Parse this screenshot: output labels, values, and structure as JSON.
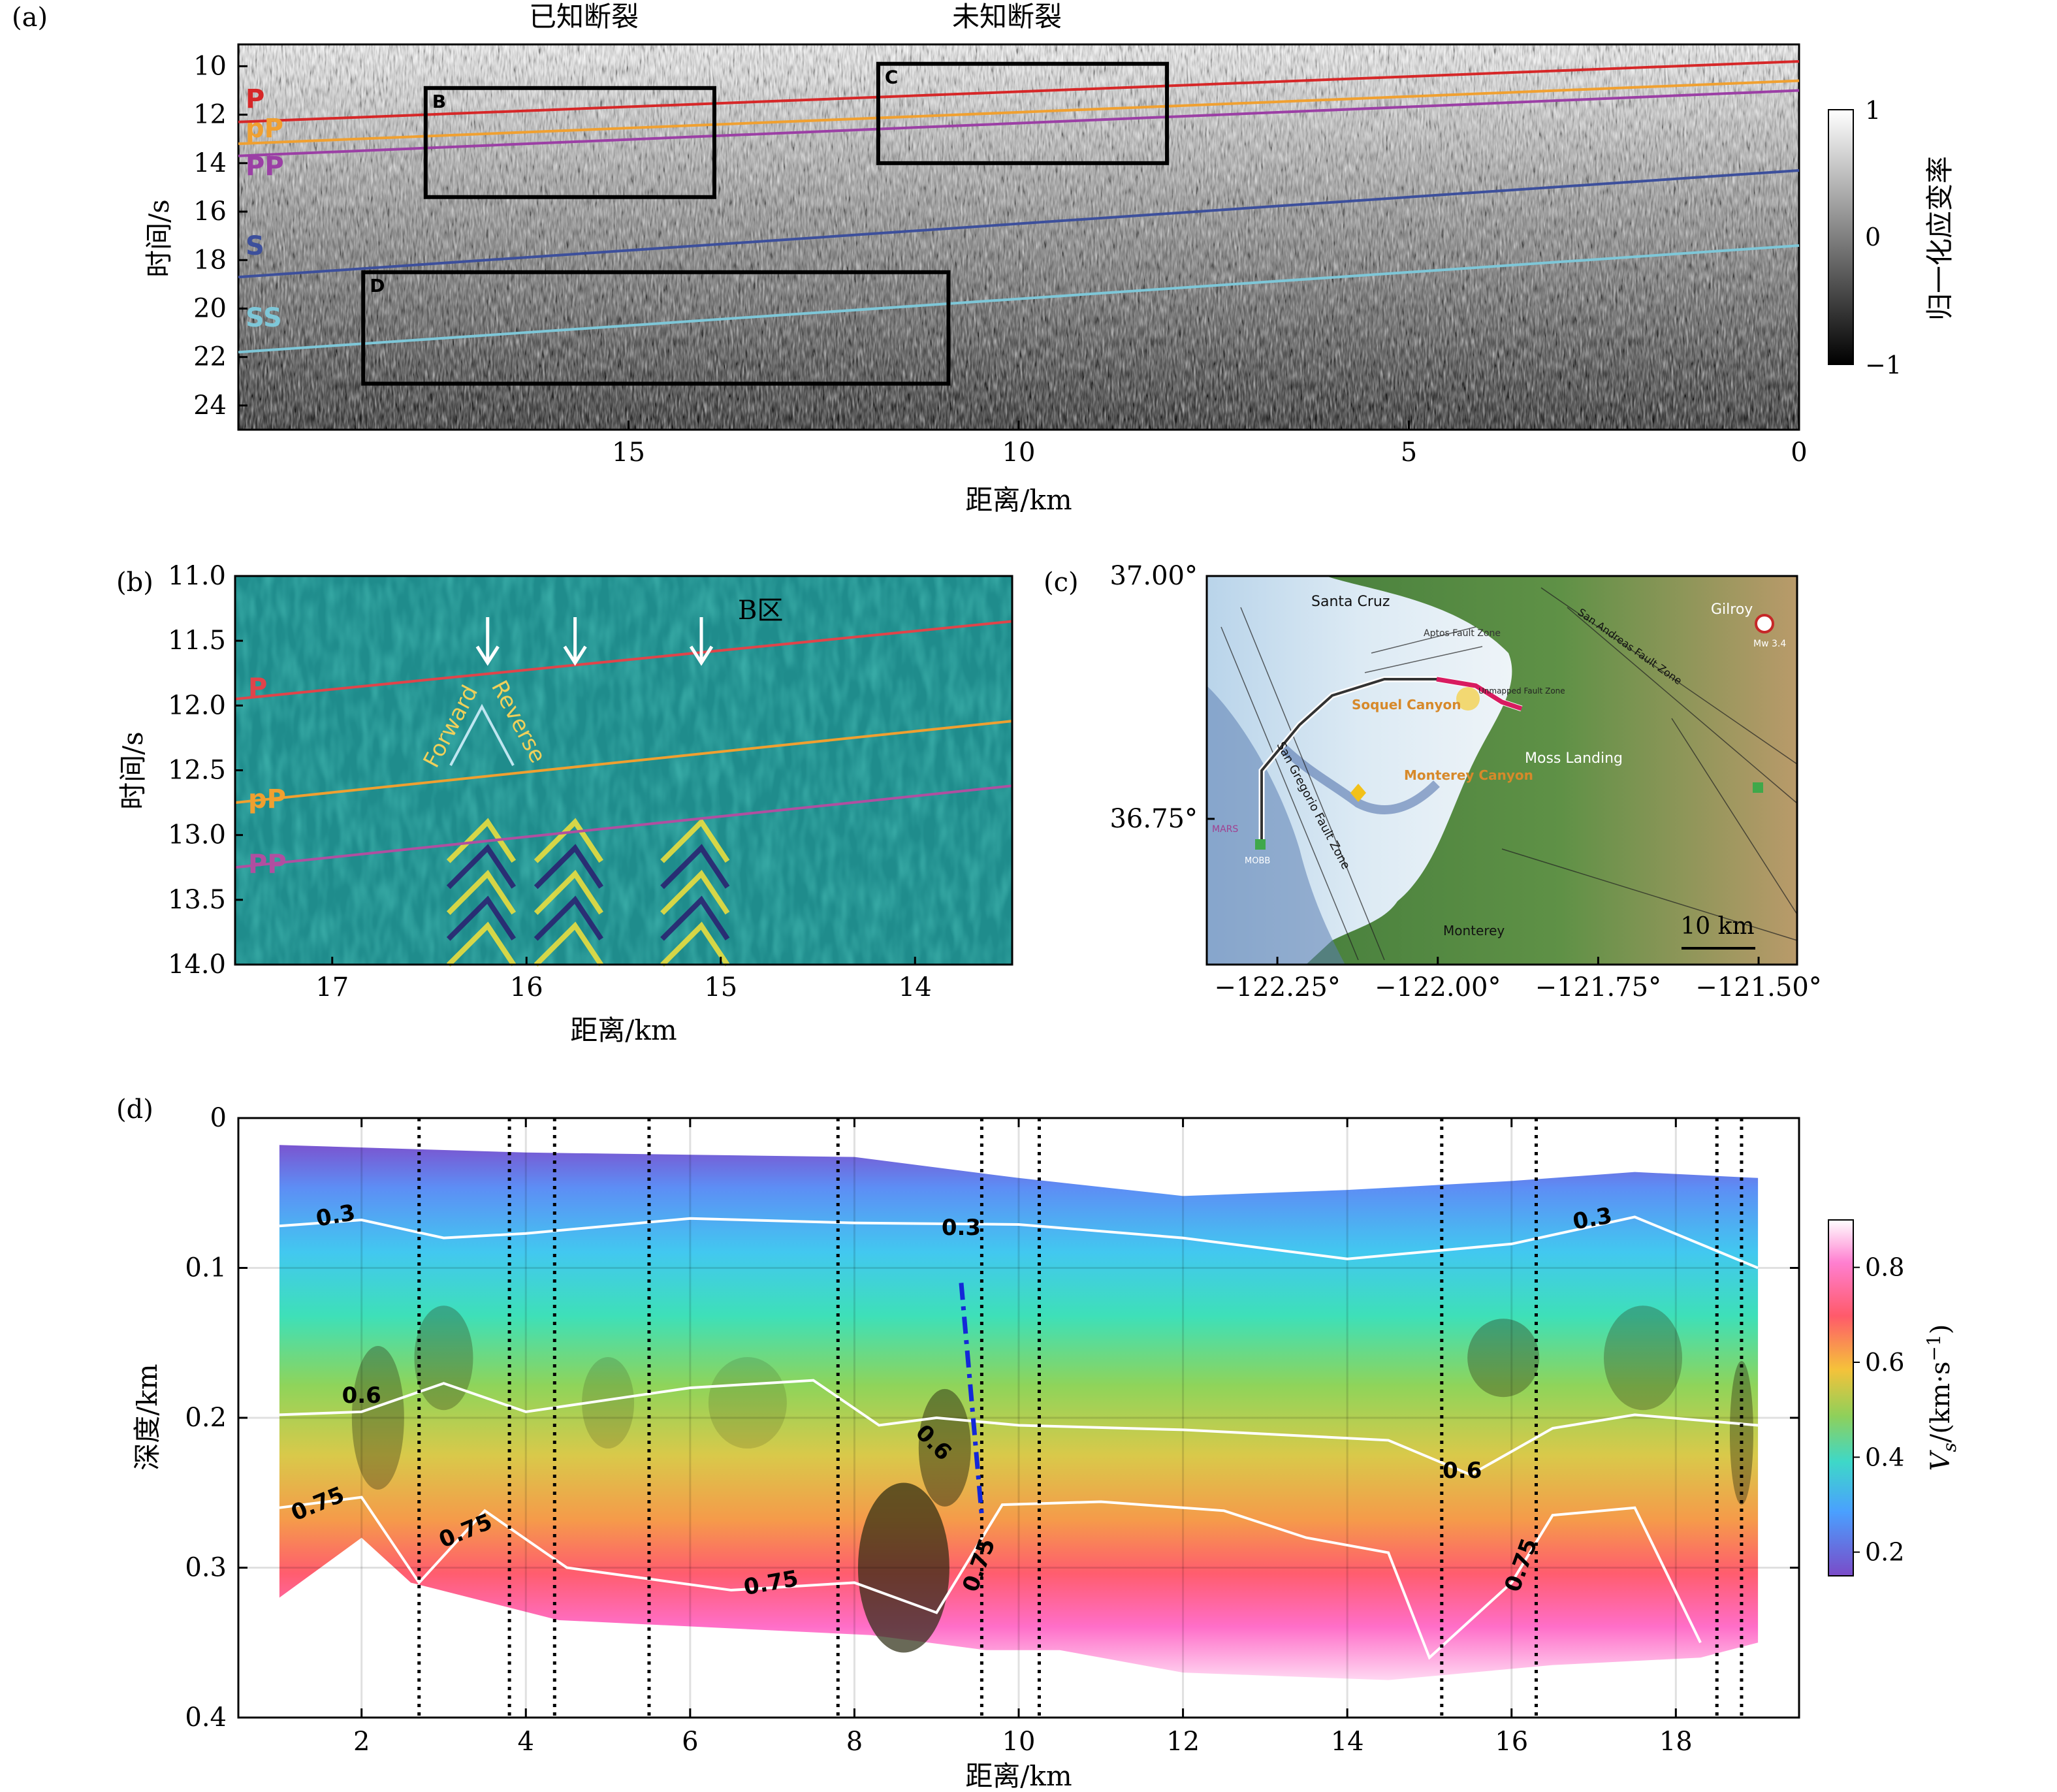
{
  "panels": {
    "a": {
      "label": "(a)",
      "ylabel": "时间/s",
      "xlabel": "距离/km",
      "xticks": [
        "15",
        "10",
        "5",
        "0"
      ],
      "yticks": [
        "10",
        "12",
        "14",
        "16",
        "18",
        "20",
        "22",
        "24"
      ],
      "top_annotations": [
        "已知断裂",
        "未知断裂"
      ],
      "box_labels": [
        "B",
        "C",
        "D"
      ],
      "phase_labels": [
        "P",
        "pP",
        "PP",
        "S",
        "SS"
      ],
      "colorbar": {
        "title": "归一化应变率",
        "ticks": [
          "1",
          "0",
          "−1"
        ]
      }
    },
    "b": {
      "label": "(b)",
      "ylabel": "时间/s",
      "xlabel": "距离/km",
      "xticks": [
        "17",
        "16",
        "15",
        "14"
      ],
      "yticks": [
        "11.0",
        "11.5",
        "12.0",
        "12.5",
        "13.0",
        "13.5",
        "14.0"
      ],
      "region_label": "B区",
      "phase_labels": [
        "P",
        "pP",
        "PP"
      ],
      "forward_label": "Forward",
      "reverse_label": "Reverse"
    },
    "c": {
      "label": "(c)",
      "xticks": [
        "−122.25°",
        "−122.00°",
        "−121.75°",
        "−121.50°"
      ],
      "yticks": [
        "37.00°",
        "36.75°"
      ],
      "scale_bar": "10 km",
      "map_labels": {
        "santa_cruz": "Santa Cruz",
        "gilroy": "Gilroy",
        "soquel": "Soquel Canyon",
        "monterey_canyon": "Monterey Canyon",
        "moss_landing": "Moss Landing",
        "monterey": "Monterey",
        "san_gregorio": "San Gregorio Fault Zone",
        "mars": "MARS",
        "mobb": "MOBB",
        "mw": "Mw 3.4",
        "aptos": "Aptos Fault Zone",
        "unmapped": "Unmapped Fault Zone",
        "san_andreas": "San Andreas Fault Zone"
      }
    },
    "d": {
      "label": "(d)",
      "ylabel": "深度/km",
      "xlabel": "距离/km",
      "xticks": [
        "2",
        "4",
        "6",
        "8",
        "10",
        "12",
        "14",
        "16",
        "18"
      ],
      "yticks": [
        "0",
        "0.1",
        "0.2",
        "0.3",
        "0.4"
      ],
      "colorbar": {
        "title_main": "V",
        "title_sub": "s",
        "title_unit": "/(km·s",
        "title_sup": "−1",
        "title_close": ")",
        "ticks": [
          "0.8",
          "0.6",
          "0.4",
          "0.2"
        ]
      },
      "contour_labels": [
        "0.3",
        "0.3",
        "0.3",
        "0.6",
        "0.6",
        "0.6",
        "0.75",
        "0.75",
        "0.75",
        "0.75",
        "0.75"
      ]
    }
  },
  "chart_data": [
    {
      "type": "heatmap",
      "panel": "a",
      "xlabel": "距离/km",
      "ylabel": "时间/s",
      "xlim": [
        20,
        0
      ],
      "ylim": [
        25,
        9.1
      ],
      "colorbar_range": [
        -1,
        1
      ],
      "phase_lines": [
        {
          "name": "P",
          "color": "#d62728",
          "t_at_20km": 12.3,
          "t_at_0km": 9.8
        },
        {
          "name": "pP",
          "color": "#f0a030",
          "t_at_20km": 13.2,
          "t_at_0km": 10.6
        },
        {
          "name": "PP",
          "color": "#9b3fa5",
          "t_at_20km": 13.7,
          "t_at_0km": 11.0
        },
        {
          "name": "S",
          "color": "#3c4f9c",
          "t_at_20km": 18.7,
          "t_at_0km": 14.3
        },
        {
          "name": "SS",
          "color": "#7ec7d8",
          "t_at_20km": 21.8,
          "t_at_0km": 17.4
        }
      ],
      "boxes": [
        {
          "name": "B",
          "x_range": [
            17.6,
            13.9
          ],
          "t_range": [
            10.9,
            15.4
          ]
        },
        {
          "name": "C",
          "x_range": [
            11.8,
            8.1
          ],
          "t_range": [
            9.9,
            14.0
          ]
        },
        {
          "name": "D",
          "x_range": [
            18.4,
            10.9
          ],
          "t_range": [
            18.5,
            23.1
          ]
        }
      ]
    },
    {
      "type": "heatmap",
      "panel": "b",
      "xlabel": "距离/km",
      "ylabel": "时间/s",
      "xlim": [
        17.5,
        13.5
      ],
      "ylim": [
        14.0,
        11.0
      ],
      "phase_lines": [
        {
          "name": "P",
          "color": "#e0444a",
          "t_at_17_5km": 11.95,
          "t_at_13_5km": 11.35
        },
        {
          "name": "pP",
          "color": "#f0a030",
          "t_at_17_5km": 12.75,
          "t_at_13_5km": 12.12
        },
        {
          "name": "PP",
          "color": "#b04fa0",
          "t_at_17_5km": 13.25,
          "t_at_13_5km": 12.62
        }
      ],
      "arrows_x_km": [
        16.2,
        15.75,
        15.1
      ]
    },
    {
      "type": "map",
      "panel": "c",
      "lon_ticks": [
        -122.25,
        -122.0,
        -121.75,
        -121.5
      ],
      "lat_ticks": [
        37.0,
        36.75
      ]
    },
    {
      "type": "heatmap",
      "panel": "d",
      "xlabel": "距离/km",
      "ylabel": "深度/km",
      "xlim": [
        0.5,
        19.5
      ],
      "ylim": [
        0.4,
        0
      ],
      "colorbar_range": [
        0.15,
        0.9
      ],
      "fault_lines_x_km": [
        2.7,
        3.8,
        4.35,
        5.5,
        7.8,
        9.55,
        10.25,
        15.15,
        16.3,
        18.5,
        18.8
      ],
      "dashed_blue_fault": {
        "x_km": [
          9.3,
          9.55
        ],
        "depth_km": [
          0.11,
          0.265
        ]
      },
      "contours": [
        {
          "level": 0.3,
          "points": [
            [
              1.0,
              0.072
            ],
            [
              2.0,
              0.068
            ],
            [
              3.0,
              0.08
            ],
            [
              4.0,
              0.077
            ],
            [
              6.0,
              0.067
            ],
            [
              8.0,
              0.07
            ],
            [
              10.0,
              0.071
            ],
            [
              12.0,
              0.08
            ],
            [
              14.0,
              0.094
            ],
            [
              16.0,
              0.084
            ],
            [
              17.5,
              0.066
            ],
            [
              19.0,
              0.1
            ]
          ]
        },
        {
          "level": 0.6,
          "points": [
            [
              1.0,
              0.198
            ],
            [
              2.0,
              0.196
            ],
            [
              3.0,
              0.177
            ],
            [
              4.0,
              0.196
            ],
            [
              6.0,
              0.18
            ],
            [
              7.5,
              0.175
            ],
            [
              8.3,
              0.205
            ],
            [
              9.0,
              0.2
            ],
            [
              10.0,
              0.205
            ],
            [
              12.0,
              0.208
            ],
            [
              14.5,
              0.215
            ],
            [
              15.5,
              0.238
            ],
            [
              16.5,
              0.207
            ],
            [
              17.5,
              0.198
            ],
            [
              19.0,
              0.205
            ]
          ]
        },
        {
          "level": 0.75,
          "points": [
            [
              1.0,
              0.26
            ],
            [
              2.0,
              0.253
            ],
            [
              2.7,
              0.31
            ],
            [
              3.5,
              0.262
            ],
            [
              4.5,
              0.3
            ],
            [
              6.5,
              0.315
            ],
            [
              8.0,
              0.31
            ],
            [
              9.0,
              0.33
            ],
            [
              9.8,
              0.258
            ],
            [
              11.0,
              0.256
            ],
            [
              12.5,
              0.262
            ],
            [
              13.5,
              0.28
            ],
            [
              14.5,
              0.29
            ],
            [
              15.0,
              0.36
            ],
            [
              16.0,
              0.31
            ],
            [
              16.5,
              0.265
            ],
            [
              17.5,
              0.26
            ],
            [
              18.3,
              0.35
            ]
          ]
        }
      ]
    }
  ]
}
